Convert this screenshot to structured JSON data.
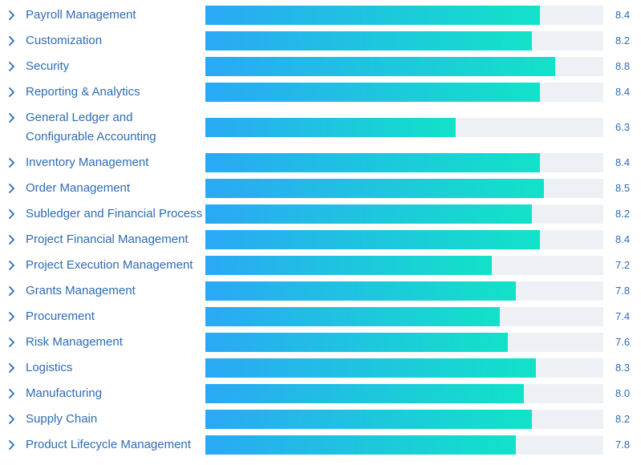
{
  "colors": {
    "label": "#2f6bb3",
    "value": "#2f6bb3",
    "track": "#edf1f5",
    "bar_gradient_start": "#2aa8f5",
    "bar_gradient_end": "#12e2c8",
    "chevron": "#2f6bb3"
  },
  "icons": {
    "row_expand": "chevron-right-icon"
  },
  "chart_data": {
    "type": "bar",
    "orientation": "horizontal",
    "xlim": [
      0,
      10
    ],
    "grid": false,
    "categories": [
      "Payroll Management",
      "Customization",
      "Security",
      "Reporting & Analytics",
      "General Ledger and Configurable Accounting",
      "Inventory Management",
      "Order Management",
      "Subledger and Financial Process",
      "Project Financial Management",
      "Project Execution Management",
      "Grants Management",
      "Procurement",
      "Risk Management",
      "Logistics",
      "Manufacturing",
      "Supply Chain",
      "Product Lifecycle Management"
    ],
    "values": [
      8.4,
      8.2,
      8.8,
      8.4,
      6.3,
      8.4,
      8.5,
      8.2,
      8.4,
      7.2,
      7.8,
      7.4,
      7.6,
      8.3,
      8.0,
      8.2,
      7.8
    ],
    "value_labels": [
      "8.4",
      "8.2",
      "8.8",
      "8.4",
      "6.3",
      "8.4",
      "8.5",
      "8.2",
      "8.4",
      "7.2",
      "7.8",
      "7.4",
      "7.6",
      "8.3",
      "8.0",
      "8.2",
      "7.8"
    ]
  }
}
